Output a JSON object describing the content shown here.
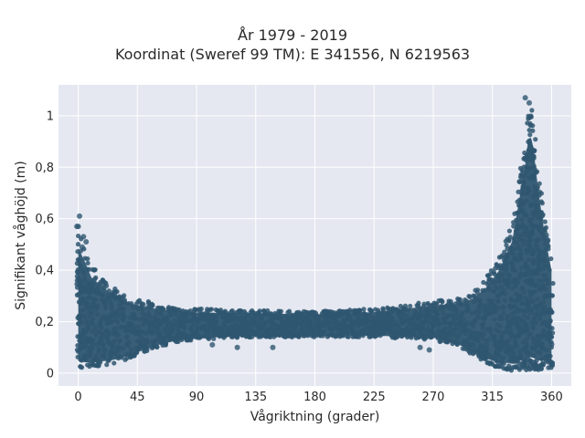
{
  "chart_data": {
    "type": "scatter",
    "title": "År 1979 - 2019",
    "subtitle": "Koordinat (Sweref 99 TM): E 341556, N 6219563",
    "xlabel": "Vågriktning (grader)",
    "ylabel": "Signifikant våghöjd (m)",
    "xlim": [
      -15,
      375
    ],
    "ylim": [
      -0.05,
      1.12
    ],
    "xticks": [
      0,
      45,
      90,
      135,
      180,
      225,
      270,
      315,
      360
    ],
    "xtick_labels": [
      "0",
      "45",
      "90",
      "135",
      "180",
      "225",
      "270",
      "315",
      "360"
    ],
    "yticks": [
      0,
      0.2,
      0.4,
      0.6,
      0.8,
      1
    ],
    "ytick_labels": [
      "0",
      "0,2",
      "0,4",
      "0,6",
      "0,8",
      "1"
    ],
    "grid": true,
    "marker_color": "#2f5670",
    "plot_bg": "#e5e8f1",
    "envelope": {
      "direction": [
        0,
        5,
        10,
        20,
        30,
        45,
        60,
        75,
        90,
        135,
        180,
        225,
        270,
        290,
        300,
        310,
        320,
        330,
        335,
        340,
        342,
        345,
        350,
        355,
        360
      ],
      "upper": [
        0.55,
        0.49,
        0.42,
        0.37,
        0.32,
        0.29,
        0.27,
        0.255,
        0.25,
        0.245,
        0.24,
        0.25,
        0.28,
        0.29,
        0.32,
        0.37,
        0.45,
        0.58,
        0.75,
        0.92,
        1.02,
        1.05,
        0.8,
        0.6,
        0.45
      ],
      "lower": [
        0.02,
        0.02,
        0.02,
        0.03,
        0.04,
        0.07,
        0.1,
        0.12,
        0.13,
        0.14,
        0.14,
        0.14,
        0.13,
        0.1,
        0.07,
        0.04,
        0.02,
        0.01,
        0.01,
        0.01,
        0.01,
        0.01,
        0.01,
        0.02,
        0.02
      ]
    },
    "outliers": [
      {
        "x": 1,
        "y": 0.61
      },
      {
        "x": -1,
        "y": 0.57
      },
      {
        "x": 0,
        "y": 0.57
      },
      {
        "x": 4,
        "y": 0.53
      },
      {
        "x": 6,
        "y": 0.51
      },
      {
        "x": 3,
        "y": 0.49
      },
      {
        "x": 148,
        "y": 0.1
      },
      {
        "x": 121,
        "y": 0.1
      },
      {
        "x": 102,
        "y": 0.11
      },
      {
        "x": 260,
        "y": 0.1
      },
      {
        "x": 267,
        "y": 0.09
      },
      {
        "x": 288,
        "y": 0.12
      },
      {
        "x": 260,
        "y": 0.2
      },
      {
        "x": 340,
        "y": 1.07
      },
      {
        "x": 343,
        "y": 1.05
      }
    ]
  }
}
